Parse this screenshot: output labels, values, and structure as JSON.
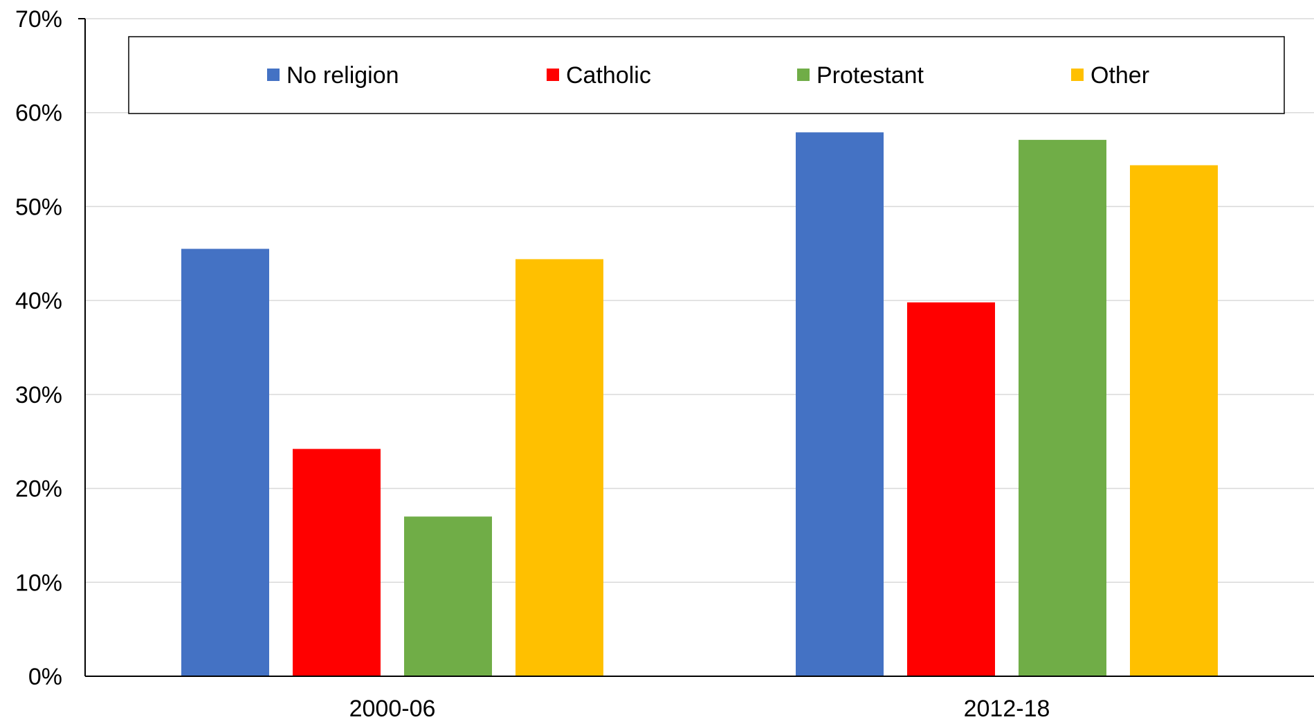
{
  "chart_data": {
    "type": "bar",
    "title": "",
    "xlabel": "",
    "ylabel": "",
    "categories": [
      "2000-06",
      "2012-18"
    ],
    "series": [
      {
        "name": "No religion",
        "color": "#4472C4",
        "values": [
          45.5,
          57.9
        ]
      },
      {
        "name": "Catholic",
        "color": "#FF0000",
        "values": [
          24.2,
          39.8
        ]
      },
      {
        "name": "Protestant",
        "color": "#70AD47",
        "values": [
          17.0,
          57.1
        ]
      },
      {
        "name": "Other",
        "color": "#FFC000",
        "values": [
          44.4,
          54.4
        ]
      }
    ],
    "ylim": [
      0,
      70
    ],
    "yticks": [
      0,
      10,
      20,
      30,
      40,
      50,
      60,
      70
    ],
    "ytick_labels": [
      "0%",
      "10%",
      "20%",
      "30%",
      "40%",
      "50%",
      "60%",
      "70%"
    ],
    "grid": true,
    "gridline_color": "#D9D9D9",
    "legend_position": "top"
  }
}
